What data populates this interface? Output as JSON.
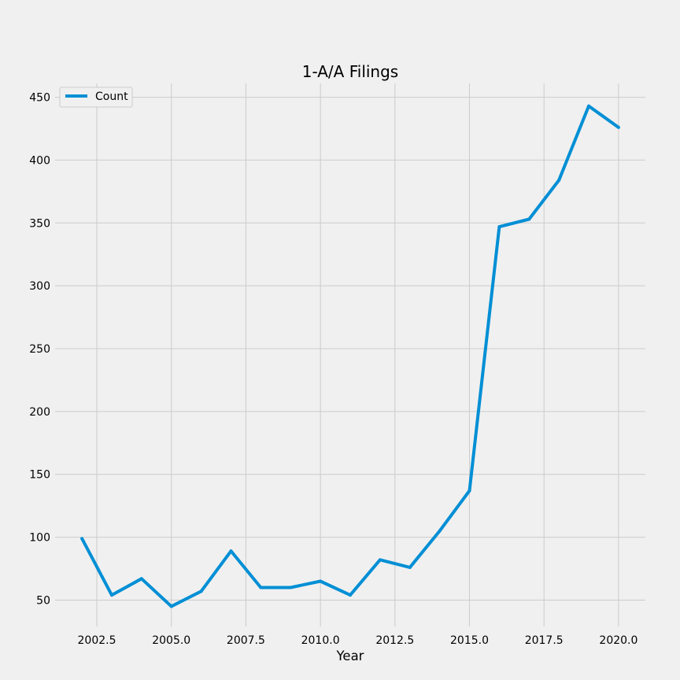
{
  "colors": {
    "background": "#f0f0f0",
    "grid": "#cbcbcb",
    "series": "#008fd5"
  },
  "chart_data": {
    "type": "line",
    "title": "1-A/A Filings",
    "xlabel": "Year",
    "ylabel": "",
    "x": [
      2002,
      2003,
      2004,
      2005,
      2006,
      2007,
      2008,
      2009,
      2010,
      2011,
      2012,
      2013,
      2014,
      2015,
      2016,
      2017,
      2018,
      2019,
      2020
    ],
    "series": [
      {
        "name": "Count",
        "color": "#008fd5",
        "values": [
          99,
          54,
          67,
          45,
          57,
          89,
          60,
          60,
          65,
          54,
          82,
          76,
          105,
          137,
          347,
          353,
          384,
          443,
          426
        ]
      }
    ],
    "xlim": [
      2001.1,
      2020.9
    ],
    "ylim": [
      29,
      461
    ],
    "xticks": [
      2002.5,
      2005.0,
      2007.5,
      2010.0,
      2012.5,
      2015.0,
      2017.5,
      2020.0
    ],
    "xtick_labels": [
      "2002.5",
      "2005.0",
      "2007.5",
      "2010.0",
      "2012.5",
      "2015.0",
      "2017.5",
      "2020.0"
    ],
    "yticks": [
      50,
      100,
      150,
      200,
      250,
      300,
      350,
      400,
      450
    ],
    "ytick_labels": [
      "50",
      "100",
      "150",
      "200",
      "250",
      "300",
      "350",
      "400",
      "450"
    ],
    "grid": true,
    "legend": "top-left"
  }
}
